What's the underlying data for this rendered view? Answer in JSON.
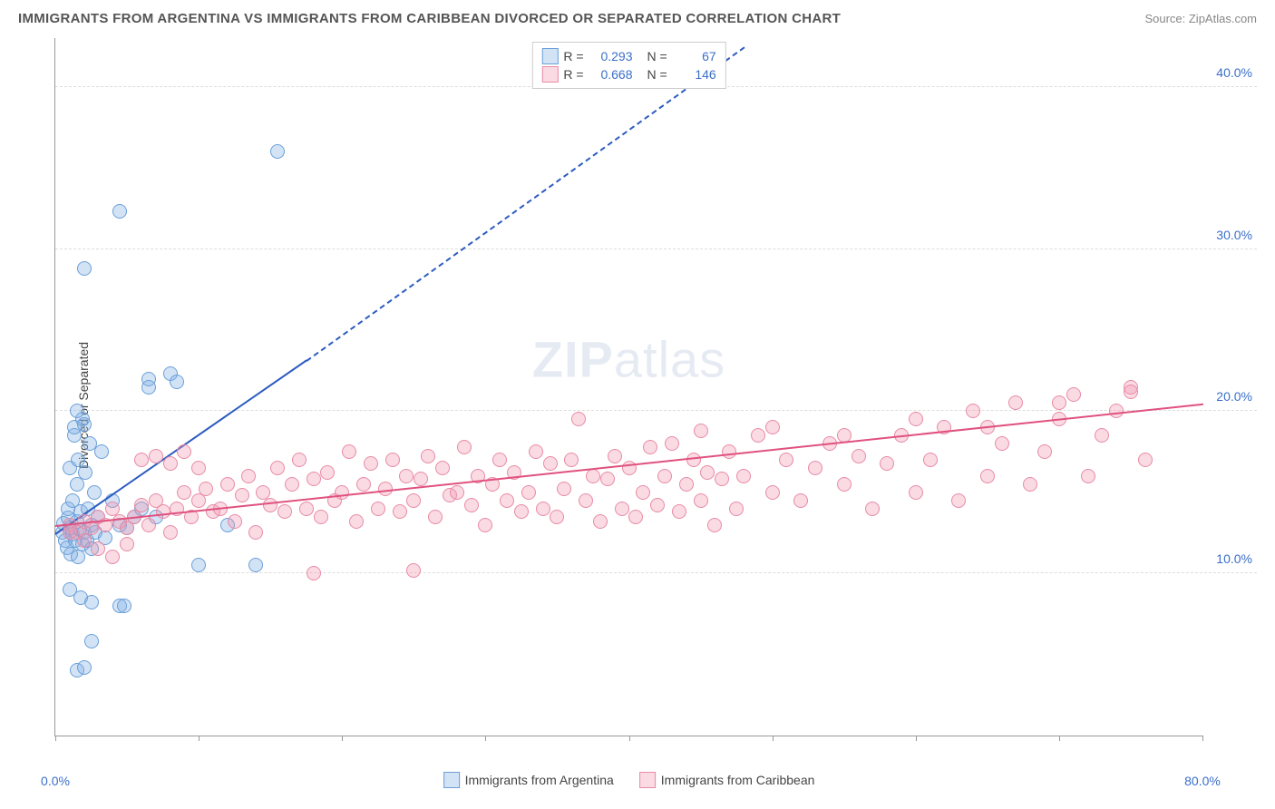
{
  "header": {
    "title": "IMMIGRANTS FROM ARGENTINA VS IMMIGRANTS FROM CARIBBEAN DIVORCED OR SEPARATED CORRELATION CHART",
    "source": "Source: ZipAtlas.com"
  },
  "chart": {
    "type": "scatter",
    "ylabel": "Divorced or Separated",
    "watermark": "ZIPatlas",
    "xlim": [
      0,
      80
    ],
    "ylim": [
      0,
      43
    ],
    "x_ticks": [
      0,
      10,
      20,
      30,
      40,
      50,
      60,
      70,
      80
    ],
    "x_tick_labels": {
      "0": "0.0%",
      "80": "80.0%"
    },
    "y_grid": [
      10,
      20,
      30,
      40
    ],
    "y_tick_labels": {
      "10": "10.0%",
      "20": "20.0%",
      "30": "30.0%",
      "40": "40.0%"
    },
    "background_color": "#ffffff",
    "grid_color": "#dddddd",
    "axis_color": "#999999",
    "marker_radius": 8,
    "series": [
      {
        "id": "argentina",
        "label": "Immigrants from Argentina",
        "fill": "rgba(130,175,230,0.35)",
        "stroke": "#6a9fd8",
        "trend_color": "#2d5cc0",
        "R": "0.293",
        "N": "67",
        "trend": {
          "x1": 0,
          "y1": 12.5,
          "x2": 17.5,
          "y2": 23.2,
          "solid_until_x": 17.5,
          "extend_to_x": 48,
          "extend_to_y": 42.5
        },
        "points": [
          [
            0.5,
            12.5
          ],
          [
            0.6,
            13.1
          ],
          [
            0.7,
            12.0
          ],
          [
            0.8,
            11.6
          ],
          [
            0.9,
            13.4
          ],
          [
            0.9,
            14.0
          ],
          [
            1.0,
            12.8
          ],
          [
            1.0,
            16.5
          ],
          [
            1.1,
            11.2
          ],
          [
            1.2,
            12.4
          ],
          [
            1.2,
            14.5
          ],
          [
            1.3,
            18.5
          ],
          [
            1.3,
            19.0
          ],
          [
            1.4,
            12.0
          ],
          [
            1.5,
            15.5
          ],
          [
            1.5,
            13.2
          ],
          [
            1.6,
            11.0
          ],
          [
            1.6,
            17.0
          ],
          [
            1.7,
            12.7
          ],
          [
            1.8,
            13.8
          ],
          [
            1.9,
            19.5
          ],
          [
            1.9,
            11.8
          ],
          [
            2.0,
            12.5
          ],
          [
            2.1,
            16.2
          ],
          [
            2.2,
            12.0
          ],
          [
            2.3,
            14.0
          ],
          [
            2.4,
            18.0
          ],
          [
            2.5,
            11.5
          ],
          [
            2.5,
            13.0
          ],
          [
            2.7,
            15.0
          ],
          [
            2.8,
            12.5
          ],
          [
            3.0,
            13.5
          ],
          [
            3.2,
            17.5
          ],
          [
            3.5,
            12.2
          ],
          [
            4.0,
            14.5
          ],
          [
            4.5,
            13.0
          ],
          [
            5.0,
            12.8
          ],
          [
            5.5,
            13.5
          ],
          [
            6.0,
            14.0
          ],
          [
            6.5,
            22.0
          ],
          [
            7.0,
            13.5
          ],
          [
            8.0,
            22.3
          ],
          [
            8.5,
            21.8
          ],
          [
            10.0,
            10.5
          ],
          [
            12.0,
            13.0
          ],
          [
            14.0,
            10.5
          ],
          [
            1.5,
            20.0
          ],
          [
            2.0,
            19.2
          ],
          [
            6.5,
            21.5
          ],
          [
            1.0,
            9.0
          ],
          [
            1.8,
            8.5
          ],
          [
            2.5,
            8.2
          ],
          [
            4.5,
            8.0
          ],
          [
            4.8,
            8.0
          ],
          [
            2.5,
            5.8
          ],
          [
            1.5,
            4.0
          ],
          [
            2.0,
            4.2
          ],
          [
            2.0,
            28.8
          ],
          [
            4.5,
            32.3
          ],
          [
            15.5,
            36.0
          ]
        ]
      },
      {
        "id": "caribbean",
        "label": "Immigrants from Caribbean",
        "fill": "rgba(240,150,175,0.35)",
        "stroke": "#e88ba5",
        "trend_color": "#e0517f",
        "R": "0.668",
        "N": "146",
        "trend": {
          "x1": 0,
          "y1": 13.0,
          "x2": 80,
          "y2": 20.5
        },
        "points": [
          [
            1,
            13.0
          ],
          [
            1.5,
            12.5
          ],
          [
            2,
            13.2
          ],
          [
            2.5,
            12.8
          ],
          [
            3,
            13.5
          ],
          [
            3.5,
            13.0
          ],
          [
            4,
            14.0
          ],
          [
            4.5,
            13.2
          ],
          [
            5,
            12.8
          ],
          [
            5.5,
            13.5
          ],
          [
            6,
            14.2
          ],
          [
            6.5,
            13.0
          ],
          [
            7,
            14.5
          ],
          [
            7.5,
            13.8
          ],
          [
            8,
            12.5
          ],
          [
            8.5,
            14.0
          ],
          [
            9,
            15.0
          ],
          [
            9.5,
            13.5
          ],
          [
            10,
            14.5
          ],
          [
            10.5,
            15.2
          ],
          [
            11,
            13.8
          ],
          [
            11.5,
            14.0
          ],
          [
            12,
            15.5
          ],
          [
            12.5,
            13.2
          ],
          [
            13,
            14.8
          ],
          [
            13.5,
            16.0
          ],
          [
            14,
            12.5
          ],
          [
            14.5,
            15.0
          ],
          [
            15,
            14.2
          ],
          [
            15.5,
            16.5
          ],
          [
            16,
            13.8
          ],
          [
            16.5,
            15.5
          ],
          [
            17,
            17.0
          ],
          [
            17.5,
            14.0
          ],
          [
            18,
            15.8
          ],
          [
            18.5,
            13.5
          ],
          [
            19,
            16.2
          ],
          [
            19.5,
            14.5
          ],
          [
            20,
            15.0
          ],
          [
            20.5,
            17.5
          ],
          [
            21,
            13.2
          ],
          [
            21.5,
            15.5
          ],
          [
            22,
            16.8
          ],
          [
            22.5,
            14.0
          ],
          [
            23,
            15.2
          ],
          [
            23.5,
            17.0
          ],
          [
            24,
            13.8
          ],
          [
            24.5,
            16.0
          ],
          [
            25,
            14.5
          ],
          [
            25.5,
            15.8
          ],
          [
            26,
            17.2
          ],
          [
            26.5,
            13.5
          ],
          [
            27,
            16.5
          ],
          [
            27.5,
            14.8
          ],
          [
            28,
            15.0
          ],
          [
            28.5,
            17.8
          ],
          [
            29,
            14.2
          ],
          [
            29.5,
            16.0
          ],
          [
            30,
            13.0
          ],
          [
            30.5,
            15.5
          ],
          [
            31,
            17.0
          ],
          [
            31.5,
            14.5
          ],
          [
            32,
            16.2
          ],
          [
            32.5,
            13.8
          ],
          [
            33,
            15.0
          ],
          [
            33.5,
            17.5
          ],
          [
            34,
            14.0
          ],
          [
            34.5,
            16.8
          ],
          [
            35,
            13.5
          ],
          [
            35.5,
            15.2
          ],
          [
            36,
            17.0
          ],
          [
            36.5,
            19.5
          ],
          [
            37,
            14.5
          ],
          [
            37.5,
            16.0
          ],
          [
            38,
            13.2
          ],
          [
            38.5,
            15.8
          ],
          [
            39,
            17.2
          ],
          [
            39.5,
            14.0
          ],
          [
            40,
            16.5
          ],
          [
            40.5,
            13.5
          ],
          [
            41,
            15.0
          ],
          [
            41.5,
            17.8
          ],
          [
            42,
            14.2
          ],
          [
            42.5,
            16.0
          ],
          [
            43,
            18.0
          ],
          [
            43.5,
            13.8
          ],
          [
            44,
            15.5
          ],
          [
            44.5,
            17.0
          ],
          [
            45,
            14.5
          ],
          [
            45.5,
            16.2
          ],
          [
            46,
            13.0
          ],
          [
            46.5,
            15.8
          ],
          [
            47,
            17.5
          ],
          [
            47.5,
            14.0
          ],
          [
            48,
            16.0
          ],
          [
            49,
            18.5
          ],
          [
            50,
            15.0
          ],
          [
            51,
            17.0
          ],
          [
            52,
            14.5
          ],
          [
            53,
            16.5
          ],
          [
            54,
            18.0
          ],
          [
            55,
            15.5
          ],
          [
            56,
            17.2
          ],
          [
            57,
            14.0
          ],
          [
            58,
            16.8
          ],
          [
            59,
            18.5
          ],
          [
            60,
            15.0
          ],
          [
            61,
            17.0
          ],
          [
            62,
            19.0
          ],
          [
            63,
            14.5
          ],
          [
            64,
            20.0
          ],
          [
            65,
            16.0
          ],
          [
            66,
            18.0
          ],
          [
            67,
            20.5
          ],
          [
            68,
            15.5
          ],
          [
            69,
            17.5
          ],
          [
            70,
            19.5
          ],
          [
            71,
            21.0
          ],
          [
            72,
            16.0
          ],
          [
            73,
            18.5
          ],
          [
            74,
            20.0
          ],
          [
            75,
            21.5
          ],
          [
            76,
            17.0
          ],
          [
            18,
            10.0
          ],
          [
            25,
            10.2
          ],
          [
            6,
            17.0
          ],
          [
            7,
            17.2
          ],
          [
            8,
            16.8
          ],
          [
            9,
            17.5
          ],
          [
            10,
            16.5
          ],
          [
            45,
            18.8
          ],
          [
            50,
            19.0
          ],
          [
            55,
            18.5
          ],
          [
            60,
            19.5
          ],
          [
            65,
            19.0
          ],
          [
            70,
            20.5
          ],
          [
            75,
            21.2
          ],
          [
            3,
            11.5
          ],
          [
            4,
            11.0
          ],
          [
            5,
            11.8
          ],
          [
            2,
            12.0
          ],
          [
            1,
            12.5
          ]
        ]
      }
    ]
  }
}
